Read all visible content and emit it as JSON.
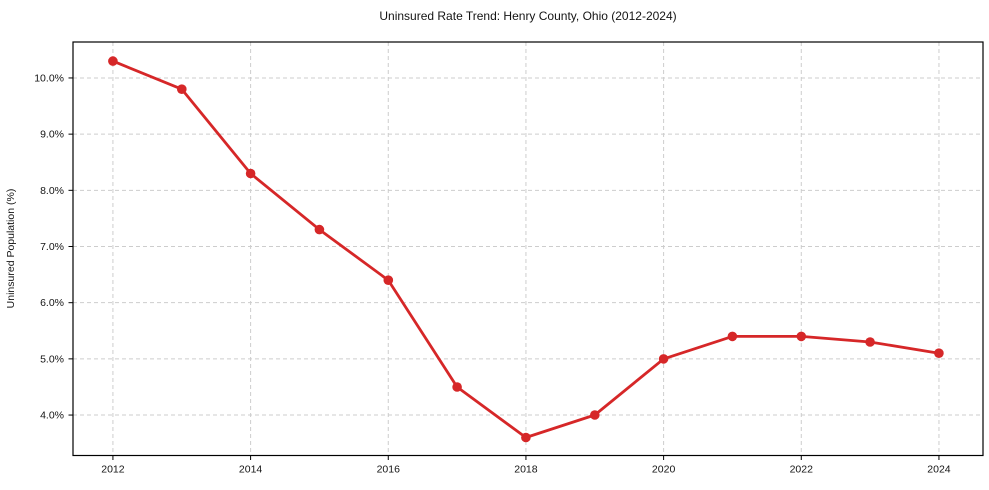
{
  "chart": {
    "title": "Uninsured Rate Trend: Henry County, Ohio (2012-2024)",
    "ylabel": "Uninsured Population (%)"
  },
  "chart_data": {
    "type": "line",
    "title": "Uninsured Rate Trend: Henry County, Ohio (2012-2024)",
    "xlabel": "",
    "ylabel": "Uninsured Population (%)",
    "x": [
      2012,
      2013,
      2014,
      2015,
      2016,
      2017,
      2018,
      2019,
      2020,
      2021,
      2022,
      2023,
      2024
    ],
    "values": [
      10.3,
      9.8,
      8.3,
      7.3,
      6.4,
      4.5,
      3.6,
      4.0,
      5.0,
      5.4,
      5.4,
      5.3,
      5.1
    ],
    "x_ticks": [
      2012,
      2014,
      2016,
      2018,
      2020,
      2022,
      2024
    ],
    "x_tick_labels": [
      "2012",
      "2014",
      "2016",
      "2018",
      "2020",
      "2022",
      "2024"
    ],
    "y_ticks": [
      4.0,
      5.0,
      6.0,
      7.0,
      8.0,
      9.0,
      10.0
    ],
    "y_tick_labels": [
      "4.0%",
      "5.0%",
      "6.0%",
      "7.0%",
      "8.0%",
      "9.0%",
      "10.0%"
    ],
    "xlim": [
      2011.42,
      2024.64
    ],
    "ylim": [
      3.28,
      10.64
    ],
    "grid": true,
    "grid_style": "dashed",
    "legend": false,
    "marker": "circle",
    "colors": {
      "line": "#d62728",
      "marker": "#d62728",
      "grid": "#cdcdcd",
      "frame": "#000000",
      "text": "#141414"
    }
  }
}
